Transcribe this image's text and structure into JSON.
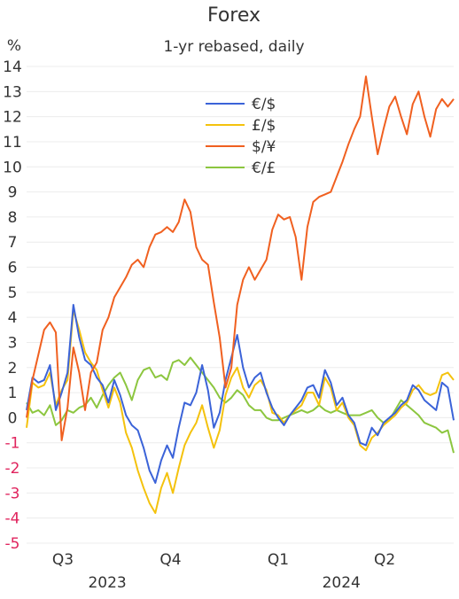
{
  "chart_data": {
    "type": "line",
    "title": "Forex",
    "subtitle": "1-yr rebased, daily",
    "ylabel": "%",
    "ylim": [
      -5,
      14
    ],
    "yticks": [
      14,
      13,
      12,
      11,
      10,
      9,
      8,
      7,
      6,
      5,
      4,
      3,
      2,
      1,
      0,
      -1,
      -2,
      -3,
      -4,
      -5
    ],
    "negative_tick_color": "#e0245e",
    "positive_tick_color": "#333333",
    "grid": true,
    "legend_position": "top-center",
    "x_quarter_labels": [
      "Q3",
      "Q4",
      "Q1",
      "Q2"
    ],
    "x_year_labels": [
      "2023",
      "2024"
    ],
    "x_domain_days": [
      0,
      365
    ],
    "x_quarter_days": [
      31,
      123,
      215,
      306
    ],
    "x_year_days": [
      69,
      269
    ],
    "series": [
      {
        "name": "€/$",
        "color": "#3b63d8",
        "x": [
          0,
          5,
          10,
          15,
          20,
          25,
          30,
          35,
          40,
          45,
          50,
          55,
          60,
          65,
          70,
          75,
          80,
          85,
          90,
          95,
          100,
          105,
          110,
          115,
          120,
          125,
          130,
          135,
          140,
          145,
          150,
          155,
          160,
          165,
          170,
          175,
          180,
          185,
          190,
          195,
          200,
          205,
          210,
          215,
          220,
          225,
          230,
          235,
          240,
          245,
          250,
          255,
          260,
          265,
          270,
          275,
          280,
          285,
          290,
          295,
          300,
          305,
          310,
          315,
          320,
          325,
          330,
          335,
          340,
          345,
          350,
          355,
          360,
          365
        ],
        "y": [
          0.3,
          1.6,
          1.4,
          1.5,
          2.1,
          0.3,
          1.0,
          1.8,
          4.5,
          3.2,
          2.3,
          2.1,
          1.6,
          1.3,
          0.6,
          1.5,
          0.9,
          0.1,
          -0.3,
          -0.5,
          -1.2,
          -2.1,
          -2.6,
          -1.7,
          -1.1,
          -1.6,
          -0.4,
          0.6,
          0.5,
          1.0,
          2.1,
          1.1,
          -0.4,
          0.2,
          1.5,
          2.4,
          3.3,
          2.0,
          1.2,
          1.6,
          1.8,
          1.0,
          0.4,
          0.0,
          -0.3,
          0.1,
          0.4,
          0.7,
          1.2,
          1.3,
          0.8,
          1.9,
          1.4,
          0.5,
          0.8,
          0.1,
          -0.2,
          -1.0,
          -1.1,
          -0.4,
          -0.7,
          -0.2,
          0.0,
          0.2,
          0.5,
          0.7,
          1.3,
          1.1,
          0.7,
          0.5,
          0.3,
          1.4,
          1.2,
          -0.1
        ]
      },
      {
        "name": "£/$",
        "color": "#f4c20d",
        "x": [
          0,
          5,
          10,
          15,
          20,
          25,
          30,
          35,
          40,
          45,
          50,
          55,
          60,
          65,
          70,
          75,
          80,
          85,
          90,
          95,
          100,
          105,
          110,
          115,
          120,
          125,
          130,
          135,
          140,
          145,
          150,
          155,
          160,
          165,
          170,
          175,
          180,
          185,
          190,
          195,
          200,
          205,
          210,
          215,
          220,
          225,
          230,
          235,
          240,
          245,
          250,
          255,
          260,
          265,
          270,
          275,
          280,
          285,
          290,
          295,
          300,
          305,
          310,
          315,
          320,
          325,
          330,
          335,
          340,
          345,
          350,
          355,
          360,
          365
        ],
        "y": [
          -0.4,
          1.4,
          1.2,
          1.3,
          1.8,
          0.5,
          1.1,
          1.5,
          4.3,
          3.5,
          2.6,
          2.2,
          1.9,
          1.1,
          0.4,
          1.2,
          0.6,
          -0.6,
          -1.2,
          -2.1,
          -2.8,
          -3.4,
          -3.8,
          -2.8,
          -2.2,
          -3.0,
          -2.0,
          -1.1,
          -0.6,
          -0.2,
          0.5,
          -0.4,
          -1.2,
          -0.5,
          0.9,
          1.6,
          2.0,
          1.2,
          0.8,
          1.3,
          1.5,
          1.1,
          0.2,
          0.1,
          -0.2,
          0.1,
          0.3,
          0.5,
          1.0,
          1.0,
          0.5,
          1.6,
          1.2,
          0.3,
          0.6,
          0.0,
          -0.3,
          -1.1,
          -1.3,
          -0.8,
          -0.6,
          -0.3,
          -0.1,
          0.1,
          0.4,
          0.6,
          1.1,
          1.3,
          1.0,
          0.9,
          1.0,
          1.7,
          1.8,
          1.5
        ]
      },
      {
        "name": "$/¥",
        "color": "#f06020",
        "x": [
          0,
          5,
          10,
          15,
          20,
          25,
          30,
          35,
          40,
          45,
          50,
          55,
          60,
          65,
          70,
          75,
          80,
          85,
          90,
          95,
          100,
          105,
          110,
          115,
          120,
          125,
          130,
          135,
          140,
          145,
          150,
          155,
          160,
          165,
          170,
          175,
          180,
          185,
          190,
          195,
          200,
          205,
          210,
          215,
          220,
          225,
          230,
          235,
          240,
          245,
          250,
          255,
          260,
          265,
          270,
          275,
          280,
          285,
          290,
          295,
          300,
          305,
          310,
          315,
          320,
          325,
          330,
          335,
          340,
          345,
          350,
          355,
          360,
          365
        ],
        "y": [
          0.0,
          1.5,
          2.5,
          3.5,
          3.8,
          3.4,
          -0.9,
          0.4,
          2.8,
          1.8,
          0.3,
          1.8,
          2.2,
          3.5,
          4.0,
          4.8,
          5.2,
          5.6,
          6.1,
          6.3,
          6.0,
          6.8,
          7.3,
          7.4,
          7.6,
          7.4,
          7.8,
          8.7,
          8.2,
          6.8,
          6.3,
          6.1,
          4.6,
          3.2,
          1.2,
          2.0,
          4.5,
          5.5,
          6.0,
          5.5,
          5.9,
          6.3,
          7.5,
          8.1,
          7.9,
          8.0,
          7.2,
          5.5,
          7.6,
          8.6,
          8.8,
          8.9,
          9.0,
          9.6,
          10.2,
          10.9,
          11.5,
          12.0,
          13.6,
          12.0,
          10.5,
          11.5,
          12.4,
          12.8,
          12.0,
          11.3,
          12.5,
          13.0,
          12.0,
          11.2,
          12.3,
          12.7,
          12.4,
          12.7
        ]
      },
      {
        "name": "€/£",
        "color": "#8cc63f",
        "x": [
          0,
          5,
          10,
          15,
          20,
          25,
          30,
          35,
          40,
          45,
          50,
          55,
          60,
          65,
          70,
          75,
          80,
          85,
          90,
          95,
          100,
          105,
          110,
          115,
          120,
          125,
          130,
          135,
          140,
          145,
          150,
          155,
          160,
          165,
          170,
          175,
          180,
          185,
          190,
          195,
          200,
          205,
          210,
          215,
          220,
          225,
          230,
          235,
          240,
          245,
          250,
          255,
          260,
          265,
          270,
          275,
          280,
          285,
          290,
          295,
          300,
          305,
          310,
          315,
          320,
          325,
          330,
          335,
          340,
          345,
          350,
          355,
          360,
          365
        ],
        "y": [
          0.6,
          0.2,
          0.3,
          0.1,
          0.5,
          -0.3,
          -0.1,
          0.3,
          0.2,
          0.4,
          0.5,
          0.8,
          0.4,
          0.9,
          1.3,
          1.6,
          1.8,
          1.3,
          0.7,
          1.5,
          1.9,
          2.0,
          1.6,
          1.7,
          1.5,
          2.2,
          2.3,
          2.1,
          2.4,
          2.1,
          1.8,
          1.5,
          1.2,
          0.8,
          0.6,
          0.8,
          1.1,
          0.9,
          0.5,
          0.3,
          0.3,
          0.0,
          -0.1,
          -0.1,
          0.0,
          0.1,
          0.2,
          0.3,
          0.2,
          0.3,
          0.5,
          0.3,
          0.2,
          0.3,
          0.2,
          0.1,
          0.1,
          0.1,
          0.2,
          0.3,
          0.0,
          -0.2,
          -0.1,
          0.3,
          0.7,
          0.5,
          0.3,
          0.1,
          -0.2,
          -0.3,
          -0.4,
          -0.6,
          -0.5,
          -1.4
        ]
      }
    ]
  }
}
